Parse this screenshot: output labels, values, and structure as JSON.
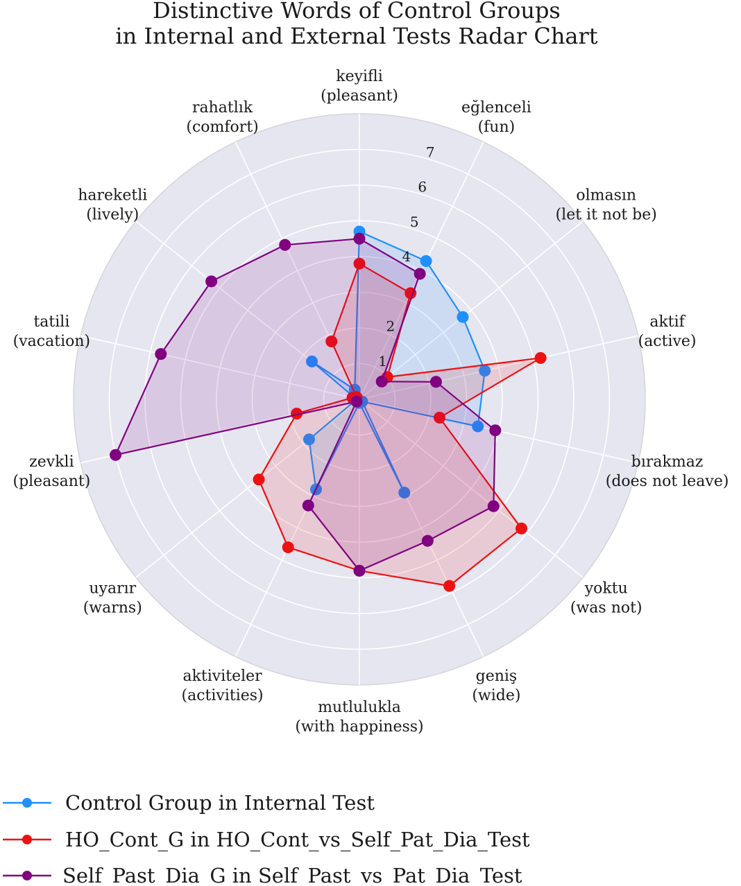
{
  "chart_data": {
    "type": "radar",
    "title": "Distinctive Words of Control Groups\nin Internal and External Tests Radar Chart",
    "title_lines": [
      "Distinctive Words of Control Groups",
      "in Internal and External Tests Radar Chart"
    ],
    "categories": [
      [
        "keyifli",
        "(pleasant)"
      ],
      [
        "eğlenceli",
        "(fun)"
      ],
      [
        "olmasın",
        "(let it not be)"
      ],
      [
        "aktif",
        "(active)"
      ],
      [
        "bırakmaz",
        "(does not leave)"
      ],
      [
        "yoktu",
        "(was not)"
      ],
      [
        "geniş",
        "(wide)"
      ],
      [
        "mutlulukla",
        "(with happiness)"
      ],
      [
        "aktiviteler",
        "(activities)"
      ],
      [
        "uyarır",
        "(warns)"
      ],
      [
        "zevkli",
        "(pleasant)"
      ],
      [
        "tatili",
        "(vacation)"
      ],
      [
        "hareketli",
        "(lively)"
      ],
      [
        "rahatlık",
        "(comfort)"
      ]
    ],
    "rlim": [
      0,
      8
    ],
    "rticks": [
      1,
      2,
      3,
      4,
      5,
      6,
      7
    ],
    "rtick_labels": [
      "1",
      "2",
      "4",
      "5",
      "6",
      "7"
    ],
    "rtick_values": [
      1,
      2,
      4,
      5,
      6,
      7
    ],
    "grid": true,
    "legend_position": "bottom-left",
    "series": [
      {
        "name": "Control Group in Internal Test",
        "color": "#1e90ff",
        "values": [
          4.7,
          4.3,
          3.7,
          3.6,
          3.4,
          0.1,
          2.9,
          0.1,
          2.8,
          1.8,
          0.1,
          0.1,
          1.7,
          0.3
        ]
      },
      {
        "name": "HO_Cont_G in HO_Cont_vs_Self_Pat_Dia_Test",
        "color": "#ee1111",
        "values": [
          3.8,
          3.3,
          1.0,
          5.2,
          2.3,
          5.8,
          5.8,
          4.8,
          4.6,
          3.6,
          1.8,
          0.2,
          0.1,
          1.8
        ]
      },
      {
        "name": "Self_Past_Dia_G in Self_Past_vs_Pat_Dia_Test",
        "color": "#800080",
        "values": [
          4.5,
          3.9,
          0.8,
          2.2,
          3.9,
          4.8,
          4.4,
          4.8,
          3.3,
          0.1,
          7.0,
          5.7,
          5.3,
          4.8
        ]
      }
    ]
  }
}
